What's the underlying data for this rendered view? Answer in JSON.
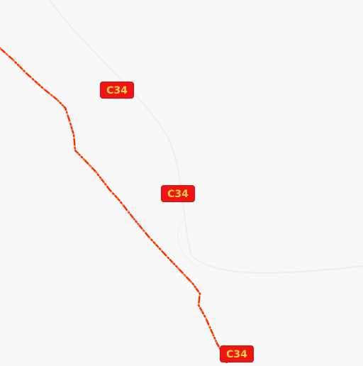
{
  "map": {
    "background": "#f8f8f8",
    "route": {
      "color_outer": "#ff2b00",
      "color_inner": "#ffd400"
    },
    "minor_roads": {
      "color": "#ececec"
    },
    "shields": [
      {
        "label": "C34"
      },
      {
        "label": "C34"
      },
      {
        "label": "C34"
      }
    ]
  }
}
